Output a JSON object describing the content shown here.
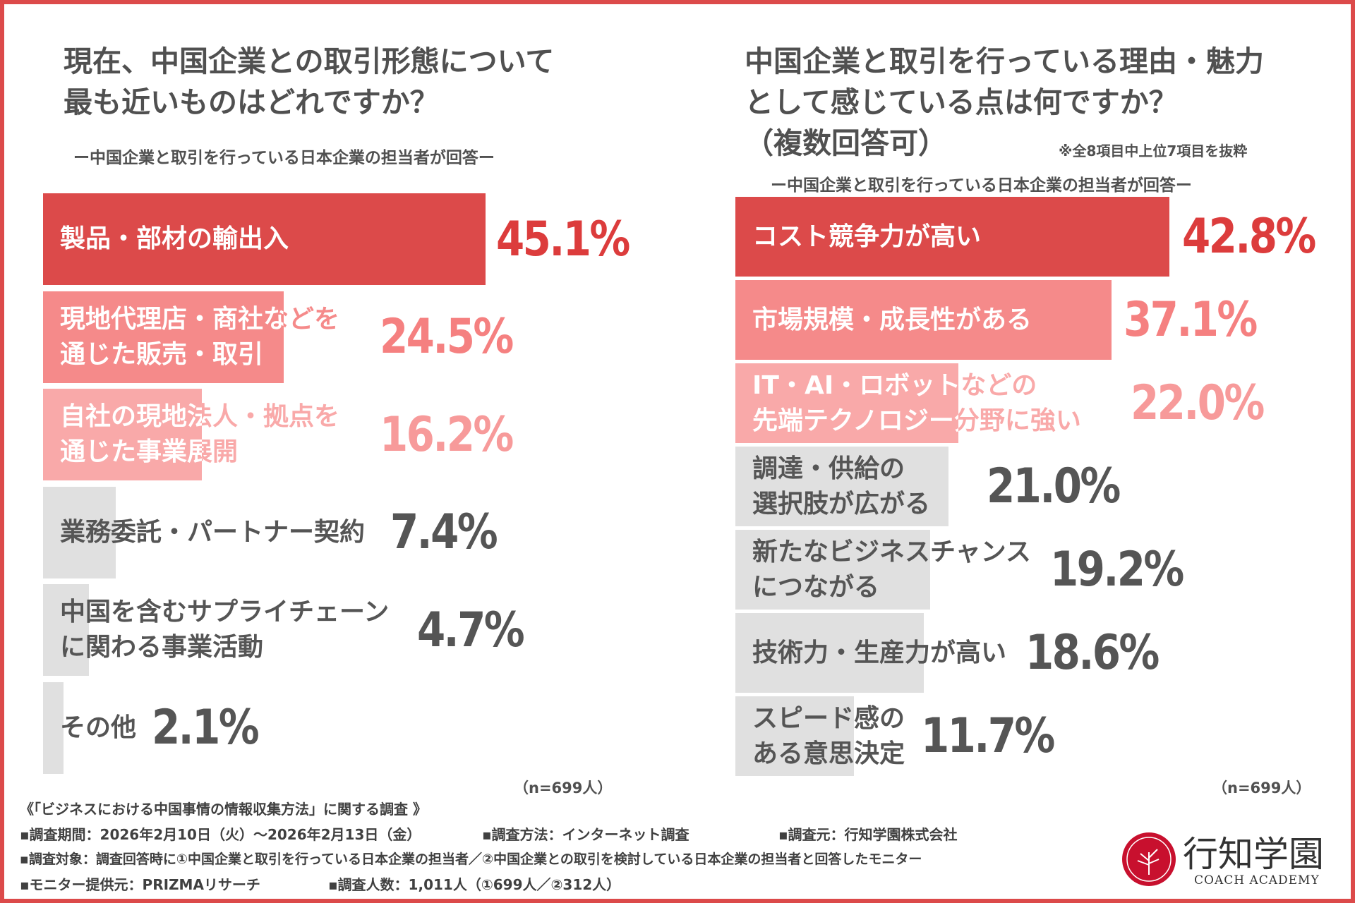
{
  "chart_data": [
    {
      "type": "bar",
      "orientation": "horizontal",
      "title": "現在、中国企業との取引形態について\n最も近いものはどれですか？",
      "subtitle": "ー中国企業と取引を行っている日本企業の担当者が回答ー",
      "categories": [
        "製品・部材の輸出入",
        "現地代理店・商社などを\n通じた販売・取引",
        "自社の現地法人・拠点を\n通じた事業展開",
        "業務委託・パートナー契約",
        "中国を含むサプライチェーン\nに関わる事業活動",
        "その他"
      ],
      "values": [
        45.1,
        24.5,
        16.2,
        7.4,
        4.7,
        2.1
      ],
      "value_labels": [
        "45.1%",
        "24.5%",
        "16.2%",
        "7.4%",
        "4.7%",
        "2.1%"
      ],
      "colors": [
        "#dc4a4a",
        "#f58a8a",
        "#f9a9a9",
        "#e0e0e0",
        "#e0e0e0",
        "#e0e0e0"
      ],
      "value_colors": [
        "#dc3c3c",
        "#f58080",
        "#f79a9a",
        "#555555",
        "#555555",
        "#555555"
      ],
      "label_colors": [
        "#ffffff",
        "#ffffff",
        "#ffffff",
        "#555555",
        "#555555",
        "#555555"
      ],
      "sample": "（n=699人）"
    },
    {
      "type": "bar",
      "orientation": "horizontal",
      "title": "中国企業と取引を行っている理由・魅力\nとして感じている点は何ですか？\n（複数回答可）",
      "note": "※全8項目中上位7項目を抜粋",
      "subtitle": "ー中国企業と取引を行っている日本企業の担当者が回答ー",
      "categories": [
        "コスト競争力が高い",
        "市場規模・成長性がある",
        "IT・AI・ロボットなどの\n先端テクノロジー分野に強い",
        "調達・供給の\n選択肢が広がる",
        "新たなビジネスチャンス\nにつながる",
        "技術力・生産力が高い",
        "スピード感の\nある意思決定"
      ],
      "values": [
        42.8,
        37.1,
        22.0,
        21.0,
        19.2,
        18.6,
        11.7
      ],
      "value_labels": [
        "42.8%",
        "37.1%",
        "22.0%",
        "21.0%",
        "19.2%",
        "18.6%",
        "11.7%"
      ],
      "colors": [
        "#dc4a4a",
        "#f58a8a",
        "#f9a9a9",
        "#e0e0e0",
        "#e0e0e0",
        "#e0e0e0",
        "#e0e0e0"
      ],
      "value_colors": [
        "#dc3c3c",
        "#f58080",
        "#f79a9a",
        "#555555",
        "#555555",
        "#555555",
        "#555555"
      ],
      "label_colors": [
        "#ffffff",
        "#ffffff",
        "#ffffff",
        "#555555",
        "#555555",
        "#555555",
        "#555555"
      ],
      "sample": "（n=699人）"
    }
  ],
  "footer": {
    "survey": "《「ビジネスにおける中国事情の情報収集方法」に関する調査 》",
    "period": "▪調査期間：2026年2月10日（火）～2026年2月13日（金）",
    "method": "▪調査方法：インターネット調査",
    "org": "▪調査元：行知学園株式会社",
    "target": "▪調査対象：調査回答時に①中国企業と取引を行っている日本企業の担当者／②中国企業との取引を検討している日本企業の担当者と回答したモニター",
    "provider": "▪モニター提供元：PRIZMAリサーチ",
    "count": "▪調査人数：1,011人（①699人／②312人）"
  },
  "logo": {
    "name": "行知学園",
    "sub": "COACH ACADEMY",
    "color": "#c8102e"
  }
}
